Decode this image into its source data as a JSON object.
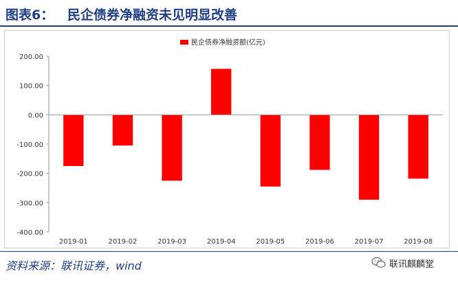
{
  "header": {
    "figure_label": "图表6：",
    "title": "民企债券净融资未见明显改善"
  },
  "chart_data": {
    "type": "bar",
    "categories": [
      "2019-01",
      "2019-02",
      "2019-03",
      "2019-04",
      "2019-05",
      "2019-06",
      "2019-07",
      "2019-08"
    ],
    "series": [
      {
        "name": "民企债券净融资额(亿元)",
        "values": [
          -175,
          -105,
          -225,
          157,
          -245,
          -188,
          -290,
          -218
        ],
        "color": "#ff0000"
      }
    ],
    "yticks": [
      "200.00",
      "100.00",
      "0.00",
      "-100.00",
      "-200.00",
      "-300.00",
      "-400.00"
    ],
    "ylim": [
      -400,
      200
    ],
    "legend_position": "top",
    "grid": false
  },
  "footer": {
    "source": "资料来源：联讯证券，wind",
    "watermark": "联讯麒麟堂",
    "watermark_icon": "wechat-icon"
  }
}
